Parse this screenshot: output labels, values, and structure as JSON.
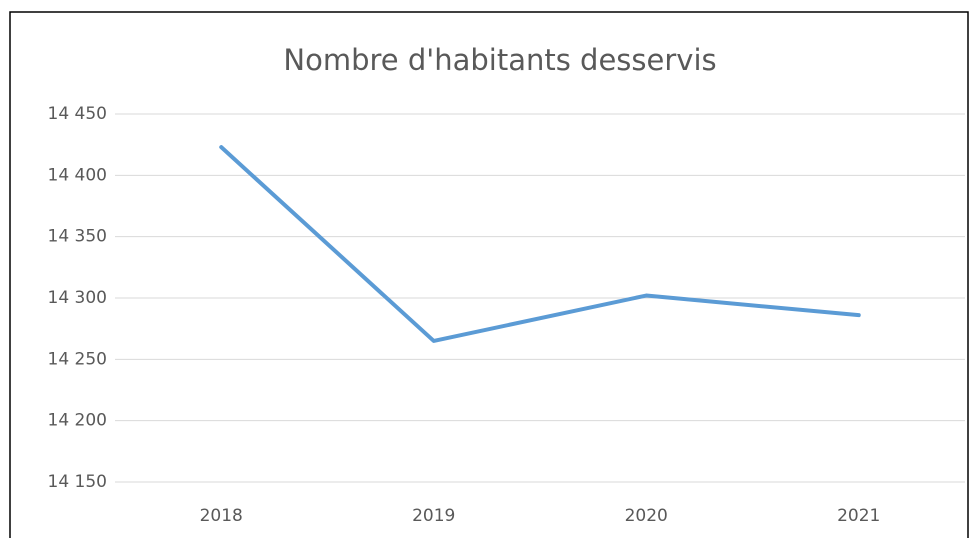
{
  "chart_data": {
    "type": "line",
    "title": "Nombre d'habitants desservis",
    "categories": [
      "2018",
      "2019",
      "2020",
      "2021"
    ],
    "series": [
      {
        "name": "Nombre d'habitants desservis",
        "color": "#5b9bd5",
        "values": [
          14423,
          14265,
          14302,
          14286
        ]
      }
    ],
    "ylim": [
      14150,
      14450
    ],
    "yticks": [
      {
        "value": 14150,
        "label": "14 150"
      },
      {
        "value": 14200,
        "label": "14 200"
      },
      {
        "value": 14250,
        "label": "14 250"
      },
      {
        "value": 14300,
        "label": "14 300"
      },
      {
        "value": 14350,
        "label": "14 350"
      },
      {
        "value": 14400,
        "label": "14 400"
      },
      {
        "value": 14450,
        "label": "14 450"
      }
    ],
    "grid": true
  }
}
